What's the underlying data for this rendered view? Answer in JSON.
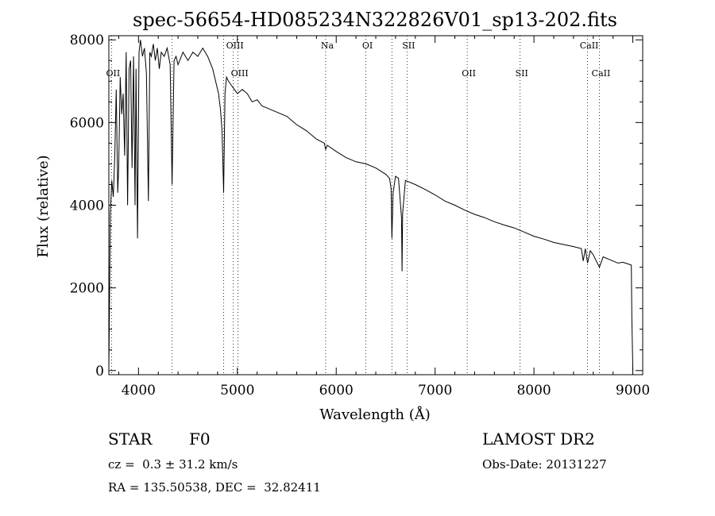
{
  "chart_data": {
    "type": "line",
    "title": "spec-56654-HD085234N322826V01_sp13-202.fits",
    "xlabel": "Wavelength (Å)",
    "ylabel": "Flux (relative)",
    "xlim": [
      3700,
      9100
    ],
    "ylim": [
      -100,
      8100
    ],
    "xticks": [
      4000,
      5000,
      6000,
      7000,
      8000,
      9000
    ],
    "yticks": [
      0,
      2000,
      4000,
      6000,
      8000
    ],
    "grid": false,
    "series": [
      {
        "x": [
          3700,
          3715,
          3730,
          3745,
          3760,
          3775,
          3790,
          3800,
          3815,
          3830,
          3845,
          3860,
          3875,
          3890,
          3905,
          3920,
          3935,
          3950,
          3965,
          3975,
          3990,
          4005,
          4020,
          4040,
          4060,
          4080,
          4100,
          4115,
          4130,
          4150,
          4170,
          4190,
          4210,
          4230,
          4260,
          4290,
          4320,
          4340,
          4360,
          4380,
          4400,
          4450,
          4500,
          4550,
          4600,
          4650,
          4700,
          4750,
          4780,
          4810,
          4830,
          4845,
          4861,
          4875,
          4890,
          4910,
          4940,
          4970,
          5000,
          5050,
          5100,
          5150,
          5200,
          5250,
          5300,
          5350,
          5400,
          5500,
          5600,
          5700,
          5800,
          5880,
          5893,
          5910,
          6000,
          6100,
          6200,
          6300,
          6400,
          6500,
          6540,
          6555,
          6563,
          6575,
          6600,
          6630,
          6660,
          6666,
          6672,
          6700,
          6800,
          6900,
          7000,
          7100,
          7200,
          7300,
          7400,
          7500,
          7600,
          7700,
          7800,
          7900,
          8000,
          8100,
          8200,
          8300,
          8400,
          8480,
          8498,
          8520,
          8542,
          8570,
          8600,
          8620,
          8662,
          8700,
          8750,
          8800,
          8850,
          8900,
          8950,
          8985,
          8990,
          9000
        ],
        "values": [
          0,
          3800,
          4600,
          4200,
          5200,
          6800,
          4300,
          4900,
          7100,
          6200,
          6700,
          5200,
          7700,
          4000,
          7300,
          7500,
          4900,
          7600,
          4000,
          7300,
          3200,
          7700,
          8000,
          7600,
          7800,
          7200,
          4100,
          7700,
          7600,
          7900,
          7500,
          7800,
          7300,
          7700,
          7600,
          7800,
          7400,
          4500,
          7500,
          7600,
          7400,
          7700,
          7500,
          7700,
          7600,
          7800,
          7600,
          7300,
          7000,
          6700,
          6300,
          5800,
          4300,
          6700,
          7100,
          7000,
          6900,
          6800,
          6700,
          6800,
          6700,
          6500,
          6550,
          6400,
          6350,
          6300,
          6250,
          6150,
          5950,
          5800,
          5600,
          5500,
          5350,
          5450,
          5300,
          5150,
          5050,
          5000,
          4900,
          4750,
          4650,
          4400,
          3200,
          4300,
          4700,
          4650,
          3700,
          2400,
          3800,
          4600,
          4500,
          4380,
          4250,
          4100,
          4000,
          3880,
          3780,
          3700,
          3600,
          3520,
          3450,
          3350,
          3250,
          3180,
          3100,
          3050,
          3000,
          2950,
          2650,
          2950,
          2600,
          2900,
          2800,
          2700,
          2500,
          2750,
          2700,
          2650,
          2600,
          2620,
          2580,
          2550,
          1300,
          0
        ]
      }
    ],
    "lines": [
      {
        "label": "OII",
        "x": 3727,
        "row": 1
      },
      {
        "label": "OIII",
        "x": 4959,
        "row": 0
      },
      {
        "label": "OIII",
        "x": 5007,
        "row": 1
      },
      {
        "label": "Na",
        "x": 5893,
        "row": 0
      },
      {
        "label": "OI",
        "x": 6300,
        "row": 0
      },
      {
        "label": "SII",
        "x": 6716,
        "row": 0
      },
      {
        "label": "OII",
        "x": 7325,
        "row": 1
      },
      {
        "label": "SII",
        "x": 7860,
        "row": 1
      },
      {
        "label": "CaII",
        "x": 8542,
        "row": 0
      },
      {
        "label": "CaII",
        "x": 8662,
        "row": 1
      }
    ],
    "extra_dotted_x": [
      4340,
      4861,
      6563
    ]
  },
  "info": {
    "object_class": "STAR",
    "subclass": "F0",
    "redshift": "cz =  0.3 ± 31.2 km/s",
    "coords": "RA = 135.50538, DEC =  32.82411",
    "survey": "LAMOST DR2",
    "obs_date": "Obs-Date: 20131227"
  }
}
